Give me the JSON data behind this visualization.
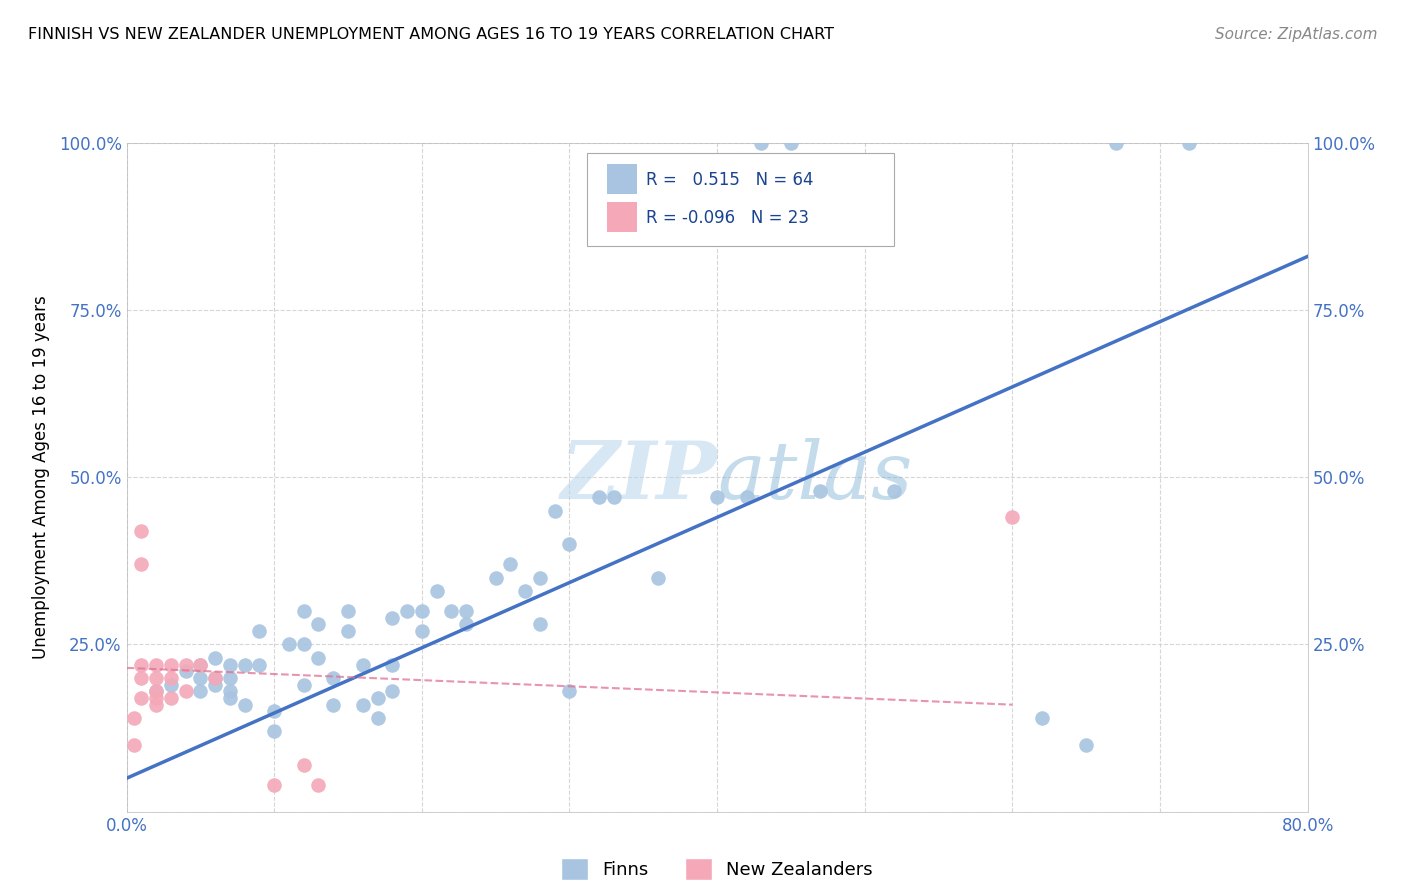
{
  "title": "FINNISH VS NEW ZEALANDER UNEMPLOYMENT AMONG AGES 16 TO 19 YEARS CORRELATION CHART",
  "source": "Source: ZipAtlas.com",
  "ylabel": "Unemployment Among Ages 16 to 19 years",
  "xlim": [
    0.0,
    0.8
  ],
  "ylim": [
    0.0,
    1.0
  ],
  "xticks": [
    0.0,
    0.1,
    0.2,
    0.3,
    0.4,
    0.5,
    0.6,
    0.7,
    0.8
  ],
  "xticklabels": [
    "0.0%",
    "",
    "",
    "",
    "",
    "",
    "",
    "",
    "80.0%"
  ],
  "yticks": [
    0.0,
    0.25,
    0.5,
    0.75,
    1.0
  ],
  "yticklabels_left": [
    "",
    "25.0%",
    "50.0%",
    "75.0%",
    "100.0%"
  ],
  "yticklabels_right": [
    "",
    "25.0%",
    "50.0%",
    "75.0%",
    "100.0%"
  ],
  "finn_color": "#a8c4e0",
  "nz_color": "#f4a8b8",
  "finn_line_color": "#4472c4",
  "nz_line_color": "#e07090",
  "tick_color": "#4472c4",
  "watermark_color": "#cce0f0",
  "finn_scatter_x": [
    0.02,
    0.03,
    0.04,
    0.05,
    0.05,
    0.05,
    0.06,
    0.06,
    0.06,
    0.07,
    0.07,
    0.07,
    0.07,
    0.08,
    0.08,
    0.09,
    0.09,
    0.1,
    0.1,
    0.11,
    0.12,
    0.12,
    0.12,
    0.13,
    0.13,
    0.14,
    0.14,
    0.15,
    0.15,
    0.16,
    0.16,
    0.17,
    0.17,
    0.18,
    0.18,
    0.18,
    0.19,
    0.2,
    0.2,
    0.21,
    0.22,
    0.23,
    0.23,
    0.25,
    0.26,
    0.27,
    0.28,
    0.28,
    0.29,
    0.3,
    0.3,
    0.32,
    0.33,
    0.36,
    0.4,
    0.42,
    0.43,
    0.45,
    0.47,
    0.52,
    0.62,
    0.65,
    0.67,
    0.72
  ],
  "finn_scatter_y": [
    0.18,
    0.19,
    0.21,
    0.22,
    0.2,
    0.18,
    0.2,
    0.23,
    0.19,
    0.2,
    0.22,
    0.18,
    0.17,
    0.22,
    0.16,
    0.27,
    0.22,
    0.15,
    0.12,
    0.25,
    0.3,
    0.25,
    0.19,
    0.23,
    0.28,
    0.2,
    0.16,
    0.27,
    0.3,
    0.22,
    0.16,
    0.14,
    0.17,
    0.29,
    0.22,
    0.18,
    0.3,
    0.3,
    0.27,
    0.33,
    0.3,
    0.3,
    0.28,
    0.35,
    0.37,
    0.33,
    0.35,
    0.28,
    0.45,
    0.4,
    0.18,
    0.47,
    0.47,
    0.35,
    0.47,
    0.47,
    1.0,
    1.0,
    0.48,
    0.48,
    0.14,
    0.1,
    1.0,
    1.0
  ],
  "nz_scatter_x": [
    0.005,
    0.005,
    0.01,
    0.01,
    0.01,
    0.01,
    0.01,
    0.02,
    0.02,
    0.02,
    0.02,
    0.02,
    0.03,
    0.03,
    0.03,
    0.04,
    0.04,
    0.05,
    0.06,
    0.1,
    0.12,
    0.6,
    0.13
  ],
  "nz_scatter_y": [
    0.14,
    0.1,
    0.42,
    0.37,
    0.22,
    0.2,
    0.17,
    0.22,
    0.2,
    0.18,
    0.17,
    0.16,
    0.22,
    0.2,
    0.17,
    0.22,
    0.18,
    0.22,
    0.2,
    0.04,
    0.07,
    0.44,
    0.04
  ],
  "finn_line_x": [
    0.0,
    0.8
  ],
  "finn_line_y": [
    0.05,
    0.83
  ],
  "nz_line_x": [
    0.0,
    0.6
  ],
  "nz_line_y": [
    0.215,
    0.16
  ]
}
